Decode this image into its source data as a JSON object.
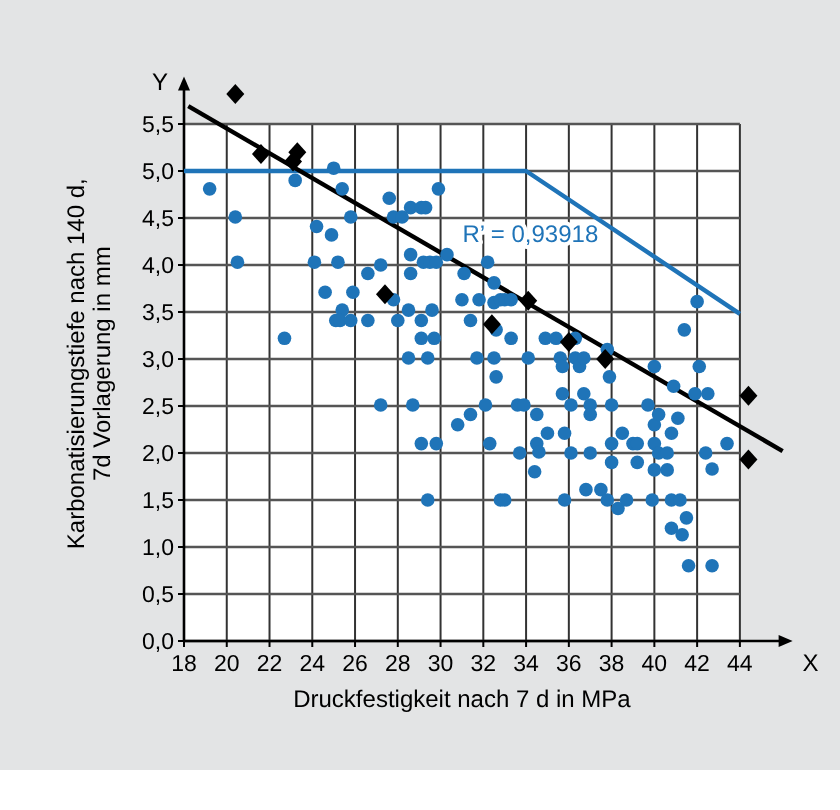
{
  "chart_data": {
    "type": "scatter",
    "xlabel": "Druckfestigkeit nach 7 d in MPa",
    "ylabel": "Karbonatisierungstiefe nach 140 d,\n7d Vorlagerung in mm",
    "xlim": [
      18,
      46
    ],
    "xticks": [
      18,
      20,
      22,
      24,
      26,
      28,
      30,
      32,
      34,
      36,
      38,
      40,
      42,
      44
    ],
    "ylim": [
      0,
      5.9
    ],
    "yticks": [
      {
        "value": 0,
        "label": "0,0"
      },
      {
        "value": 0.5,
        "label": "0,5"
      },
      {
        "value": 1,
        "label": "1,0"
      },
      {
        "value": 1.5,
        "label": "1,5"
      },
      {
        "value": 2,
        "label": "2,0"
      },
      {
        "value": 2.5,
        "label": "2,5"
      },
      {
        "value": 3,
        "label": "3,0"
      },
      {
        "value": 3.5,
        "label": "3,5"
      },
      {
        "value": 4,
        "label": "4,0"
      },
      {
        "value": 4.5,
        "label": "4,5"
      },
      {
        "value": 5,
        "label": "5,0"
      },
      {
        "value": 5.5,
        "label": "5,5"
      }
    ],
    "grid": true,
    "annotations": [
      "Y",
      "X",
      "R’ = 0,93918"
    ],
    "series": [
      {
        "marker": "circle",
        "color": "#1f74b8",
        "x": [
          19.2,
          20.4,
          20.5,
          22.7,
          23.2,
          24.1,
          24.2,
          24.9,
          25.0,
          25.2,
          25.4,
          24.6,
          25.1,
          25.4,
          25.3,
          25.8,
          25.8,
          25.9,
          26.6,
          26.6,
          27.2,
          27.6,
          27.8,
          28.2,
          27.8,
          28.0,
          28.5,
          28.5,
          28.6,
          28.6,
          28.6,
          29.1,
          29.3,
          29.1,
          29.1,
          29.4,
          29.2,
          29.6,
          29.5,
          29.8,
          29.7,
          29.9,
          30.3,
          31.0,
          31.1,
          31.4,
          31.7,
          31.8,
          32.2,
          32.5,
          32.6,
          32.6,
          32.5,
          27.2,
          28.7,
          29.1,
          29.8,
          29.4,
          30.8,
          31.4,
          32.1,
          32.3,
          32.8,
          32.5,
          32.8,
          33.0,
          33.3,
          33.3,
          34.1,
          34.9,
          35.4,
          35.6,
          35.7,
          36.3,
          36.3,
          36.5,
          36.7,
          36.7,
          35.7,
          37.8,
          37.9,
          40.0,
          40.9,
          41.4,
          42.0,
          42.1,
          41.9,
          42.5,
          33.0,
          33.6,
          33.9,
          33.7,
          34.5,
          34.5,
          34.6,
          34.4,
          35.0,
          35.8,
          35.8,
          36.1,
          36.1,
          36.8,
          37.0,
          37.0,
          37.0,
          37.5,
          37.8,
          38.0,
          38.0,
          38.0,
          38.3,
          38.5,
          38.7,
          39.0,
          39.2,
          39.2,
          39.7,
          40.0,
          40.2,
          40.0,
          40.2,
          40.6,
          40.0,
          39.9,
          40.6,
          40.8,
          41.1,
          40.8,
          41.2,
          41.5,
          40.8,
          41.3,
          41.6,
          42.7,
          42.4,
          42.7,
          43.4
        ],
        "values": [
          4.81,
          4.51,
          4.03,
          3.22,
          4.9,
          4.03,
          4.41,
          4.32,
          5.03,
          4.03,
          4.81,
          3.71,
          3.41,
          3.52,
          3.41,
          3.41,
          4.51,
          3.71,
          3.91,
          3.41,
          4.0,
          4.71,
          4.51,
          4.51,
          3.63,
          3.41,
          3.01,
          3.52,
          4.11,
          3.91,
          4.61,
          4.61,
          4.61,
          3.41,
          3.22,
          3.01,
          4.03,
          3.52,
          4.03,
          4.03,
          3.22,
          4.81,
          4.11,
          3.63,
          3.91,
          3.41,
          3.01,
          3.63,
          4.03,
          3.01,
          2.81,
          3.31,
          3.6,
          2.51,
          2.51,
          2.1,
          2.1,
          1.5,
          2.3,
          2.41,
          2.51,
          2.1,
          1.5,
          3.81,
          3.63,
          3.63,
          3.63,
          3.22,
          3.01,
          3.22,
          3.22,
          3.01,
          2.92,
          3.22,
          3.01,
          2.92,
          3.01,
          2.63,
          2.63,
          3.1,
          2.81,
          2.92,
          2.71,
          3.31,
          3.61,
          2.92,
          2.63,
          2.63,
          1.5,
          2.51,
          2.51,
          2.0,
          2.41,
          2.1,
          2.01,
          1.8,
          2.21,
          2.21,
          1.5,
          2.51,
          2.0,
          1.61,
          2.51,
          2.41,
          2.0,
          1.61,
          1.5,
          2.51,
          2.1,
          1.9,
          1.41,
          2.21,
          1.5,
          2.1,
          2.1,
          1.9,
          2.51,
          2.3,
          2.41,
          2.1,
          2.0,
          2.0,
          1.82,
          1.5,
          1.82,
          2.21,
          2.37,
          1.5,
          1.5,
          1.31,
          1.2,
          1.13,
          0.8,
          0.8,
          2.0,
          1.83,
          2.1
        ]
      },
      {
        "marker": "diamond",
        "color": "#000000",
        "x": [
          20.4,
          21.6,
          23.1,
          23.3,
          27.4,
          32.4,
          34.1,
          36.0,
          37.7,
          44.4,
          44.4
        ],
        "values": [
          5.82,
          5.18,
          5.1,
          5.2,
          3.69,
          3.37,
          3.62,
          3.18,
          3.0,
          2.61,
          1.93
        ]
      },
      {
        "type": "line",
        "marker": "none",
        "color": "#000000",
        "x": [
          18.2,
          46
        ],
        "values": [
          5.69,
          2.02
        ]
      },
      {
        "type": "line",
        "marker": "none",
        "color": "#1f74b8",
        "x": [
          18,
          34,
          44
        ],
        "values": [
          5,
          5,
          3.48
        ]
      }
    ]
  }
}
